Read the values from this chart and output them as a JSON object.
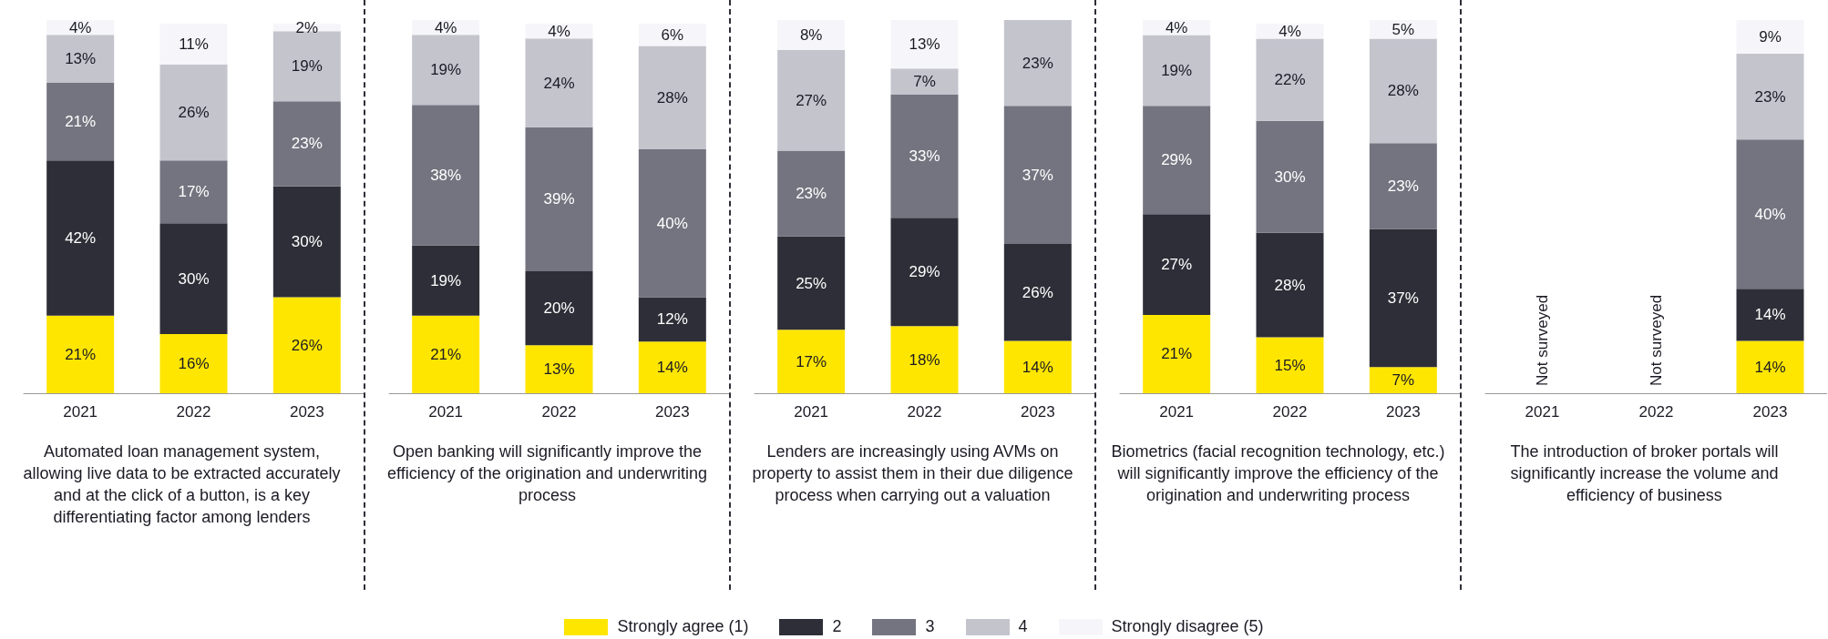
{
  "chart_data": [
    {
      "type": "bar",
      "stacked": true,
      "categories": [
        "2021",
        "2022",
        "2023"
      ],
      "tick_labels": "x",
      "legend": "bottom",
      "xlabel": "Automated loan management system, allowing live data to be extracted accurately and at the click of a button, is a key differentiating factor among lenders",
      "series": [
        {
          "name": "Strongly agree (1)",
          "color": "#ffe600",
          "values": [
            21,
            16,
            26
          ],
          "value_labels": [
            "21%",
            "16%",
            "26%"
          ]
        },
        {
          "name": "2",
          "color": "#2e2e38",
          "values": [
            42,
            30,
            30
          ],
          "value_labels": [
            "42%",
            "30%",
            "30%"
          ]
        },
        {
          "name": "3",
          "color": "#747480",
          "values": [
            21,
            17,
            23
          ],
          "value_labels": [
            "21%",
            "17%",
            "23%"
          ]
        },
        {
          "name": "4",
          "color": "#c4c4cd",
          "values": [
            13,
            26,
            19
          ],
          "value_labels": [
            "13%",
            "26%",
            "19%"
          ]
        },
        {
          "name": "Strongly disagree (5)",
          "color": "#f6f6fa",
          "values": [
            4,
            11,
            2
          ],
          "value_labels": [
            "4%",
            "11%",
            "2%"
          ]
        }
      ]
    },
    {
      "type": "bar",
      "stacked": true,
      "categories": [
        "2021",
        "2022",
        "2023"
      ],
      "tick_labels": "x",
      "xlabel": "Open banking will significantly improve the efficiency of the origination and underwriting process",
      "series": [
        {
          "color": "#ffe600",
          "values": [
            21,
            13,
            14
          ],
          "value_labels": [
            "21%",
            "13%",
            "14%"
          ]
        },
        {
          "color": "#2e2e38",
          "values": [
            19,
            20,
            12
          ],
          "value_labels": [
            "19%",
            "20%",
            "12%"
          ]
        },
        {
          "color": "#747480",
          "values": [
            38,
            39,
            40
          ],
          "value_labels": [
            "38%",
            "39%",
            "40%"
          ]
        },
        {
          "color": "#c4c4cd",
          "values": [
            19,
            24,
            28
          ],
          "value_labels": [
            "19%",
            "24%",
            "28%"
          ]
        },
        {
          "color": "#f6f6fa",
          "values": [
            4,
            4,
            6
          ],
          "value_labels": [
            "4%",
            "4%",
            "6%"
          ]
        }
      ]
    },
    {
      "type": "bar",
      "stacked": true,
      "categories": [
        "2021",
        "2022",
        "2023"
      ],
      "tick_labels": "x",
      "xlabel": "Lenders are increasingly using AVMs on property to assist them in their due diligence process when carrying out a valuation",
      "series": [
        {
          "color": "#ffe600",
          "values": [
            17,
            18,
            14
          ],
          "value_labels": [
            "17%",
            "18%",
            "14%"
          ]
        },
        {
          "color": "#2e2e38",
          "values": [
            25,
            29,
            26
          ],
          "value_labels": [
            "25%",
            "29%",
            "26%"
          ]
        },
        {
          "color": "#747480",
          "values": [
            23,
            33,
            37
          ],
          "value_labels": [
            "23%",
            "33%",
            "37%"
          ]
        },
        {
          "color": "#c4c4cd",
          "values": [
            27,
            7,
            23
          ],
          "value_labels": [
            "27%",
            "7%",
            "23%"
          ]
        },
        {
          "color": "#f6f6fa",
          "values": [
            8,
            13,
            null
          ],
          "value_labels": [
            "8%",
            "13%",
            null
          ]
        }
      ]
    },
    {
      "type": "bar",
      "stacked": true,
      "categories": [
        "2021",
        "2022",
        "2023"
      ],
      "tick_labels": "x",
      "xlabel": "Biometrics (facial recognition technology, etc.) will significantly improve the efficiency of the origination and underwriting process",
      "series": [
        {
          "color": "#ffe600",
          "values": [
            21,
            15,
            7
          ],
          "value_labels": [
            "21%",
            "15%",
            "7%"
          ]
        },
        {
          "color": "#2e2e38",
          "values": [
            27,
            28,
            37
          ],
          "value_labels": [
            "27%",
            "28%",
            "37%"
          ]
        },
        {
          "color": "#747480",
          "values": [
            29,
            30,
            23
          ],
          "value_labels": [
            "29%",
            "30%",
            "23%"
          ]
        },
        {
          "color": "#c4c4cd",
          "values": [
            19,
            22,
            28
          ],
          "value_labels": [
            "19%",
            "22%",
            "28%"
          ]
        },
        {
          "color": "#f6f6fa",
          "values": [
            4,
            4,
            5
          ],
          "value_labels": [
            "4%",
            "4%",
            "5%"
          ]
        }
      ]
    },
    {
      "type": "bar",
      "stacked": true,
      "categories": [
        "2021",
        "2022",
        "2023"
      ],
      "tick_labels": "x",
      "xlabel": "The introduction of broker portals will significantly increase the volume and efficiency of business",
      "annotations": [
        "Not surveyed",
        "Not surveyed"
      ],
      "series": [
        {
          "color": "#ffe600",
          "values": [
            null,
            null,
            14
          ],
          "value_labels": [
            null,
            null,
            "14%"
          ]
        },
        {
          "color": "#2e2e38",
          "values": [
            null,
            null,
            14
          ],
          "value_labels": [
            null,
            null,
            "14%"
          ]
        },
        {
          "color": "#747480",
          "values": [
            null,
            null,
            40
          ],
          "value_labels": [
            null,
            null,
            "40%"
          ]
        },
        {
          "color": "#c4c4cd",
          "values": [
            null,
            null,
            23
          ],
          "value_labels": [
            null,
            null,
            "23%"
          ]
        },
        {
          "color": "#f6f6fa",
          "values": [
            null,
            null,
            9
          ],
          "value_labels": [
            null,
            null,
            "9%"
          ]
        }
      ]
    }
  ]
}
